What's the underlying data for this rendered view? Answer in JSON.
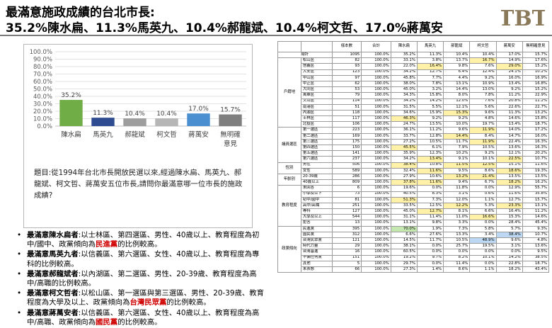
{
  "header": {
    "title_line1": "最滿意施政成績的台北市長:",
    "title_line2": "35.2%陳水扁、11.3%馬英九、10.4%郝龍斌、10.4%柯文哲、17.0%蔣萬安",
    "logo_text": "TBT"
  },
  "chart_data": {
    "type": "bar",
    "categories": [
      "陳水扁",
      "馬英九",
      "郝龍斌",
      "柯文哲",
      "蔣萬安",
      "無明確意見"
    ],
    "values": [
      35.2,
      11.3,
      10.4,
      10.4,
      17.0,
      15.7
    ],
    "value_labels": [
      "35.2%",
      "11.3%",
      "10.4%",
      "10.4%",
      "17.0%",
      "15.7%"
    ],
    "colors": [
      "#70ad47",
      "#2e4c8f",
      "#9e9e9e",
      "#b6b6b6",
      "#4a8fd0",
      "#7f7f7f"
    ],
    "y_ticks": [
      "0.0%",
      "10.0%",
      "20.0%",
      "30.0%",
      "40.0%",
      "50.0%",
      "60.0%",
      "70.0%",
      "80.0%",
      "90.0%",
      "100.0%"
    ],
    "ylim": [
      0,
      100
    ],
    "grid": true,
    "title": "",
    "xlabel": "",
    "ylabel": ""
  },
  "question": "題目:從1994年台北市長開放民選以來,經過陳水扁、馬英九、郝龍斌、柯文哲、蔣萬安五位市長,請問你最滿意哪一位市長的施政成績?",
  "bullets": [
    {
      "lead": "最滿意陳水扁者",
      "text": ":以士林區、第四選區、男性、40歲以上、教育程度為初中/國中、政黨傾向為",
      "hl": "民進黨",
      "tail": "的比例較高。"
    },
    {
      "lead": "最滿意馬英九者",
      "text": ":以信義區、第六選區、女性、40歲以上、教育程度為專科的比例較高。",
      "hl": "",
      "tail": ""
    },
    {
      "lead": "最滿意郝龍斌者",
      "text": ":以內湖區、第二選區、男性、20-39歲、教育程度為高中/高職的比例較高。",
      "hl": "",
      "tail": ""
    },
    {
      "lead": "最滿意柯文哲者",
      "text": ":以松山區、第一選區與第三選區、男性、20-39歲、教育程度為大學及以上、政黨傾向為",
      "hl": "台灣民眾黨",
      "tail": "的比例較高。"
    },
    {
      "lead": "最滿意蔣萬安者",
      "text": ":以信義區、第六選區、女性、40歲以上、教育程度為高中/高職、政黨傾向為",
      "hl": "國民黨",
      "tail": "的比例較高。"
    }
  ],
  "table": {
    "headers": [
      "",
      "",
      "樣本數",
      "合計",
      "陳水扁",
      "馬英九",
      "郝龍斌",
      "柯文哲",
      "蔣萬安",
      "無明確意見"
    ],
    "groups": [
      {
        "name": "總計",
        "rows": [
          {
            "label": "",
            "cells": [
              "1095",
              "100.0%",
              "35.2%",
              "11.3%",
              "10.4%",
              "10.4%",
              "17.0%",
              "15.7%"
            ],
            "hl": []
          }
        ]
      },
      {
        "name": "戶籍地",
        "rows": [
          {
            "label": "松山區",
            "cells": [
              "82",
              "100.0%",
              "33.1%",
              "3.8%",
              "13.7%",
              "16.7%",
              "14.9%",
              "17.6%"
            ],
            "hl": [
              [
                5,
                "y"
              ]
            ]
          },
          {
            "label": "信義區",
            "cells": [
              "93",
              "100.0%",
              "22.0%",
              "16.4%",
              "9.8%",
              "7.6%",
              "29.0%",
              "15.2%"
            ],
            "hl": [
              [
                3,
                "y"
              ],
              [
                6,
                "y"
              ]
            ]
          },
          {
            "label": "大安區",
            "cells": [
              "123",
              "100.0%",
              "34.2%",
              "12.7%",
              "6.4%",
              "12.4%",
              "24.1%",
              "10.2%"
            ],
            "hl": []
          },
          {
            "label": "中山區",
            "cells": [
              "97",
              "100.0%",
              "45.8%",
              "7.7%",
              "4.4%",
              "9.2%",
              "16.0%",
              "16.9%"
            ],
            "hl": []
          },
          {
            "label": "中正區",
            "cells": [
              "62",
              "100.0%",
              "38.0%",
              "7.8%",
              "13.1%",
              "10.9%",
              "13.4%",
              "16.8%"
            ],
            "hl": []
          },
          {
            "label": "大同區",
            "cells": [
              "53",
              "100.0%",
              "45.0%",
              "3.2%",
              "14.4%",
              "13.0%",
              "9.2%",
              "15.2%"
            ],
            "hl": []
          },
          {
            "label": "萬華區",
            "cells": [
              "79",
              "100.0%",
              "34.3%",
              "15.8%",
              "8.0%",
              "7.8%",
              "11.2%",
              "22.9%"
            ],
            "hl": []
          },
          {
            "label": "文山區",
            "cells": [
              "114",
              "100.0%",
              "34.2%",
              "14.2%",
              "12.0%",
              "7.6%",
              "20.8%",
              "11.2%"
            ],
            "hl": []
          },
          {
            "label": "南港區",
            "cells": [
              "51",
              "100.0%",
              "31.5%",
              "5.5%",
              "12.1%",
              "5.6%",
              "22.6%",
              "22.7%"
            ],
            "hl": []
          },
          {
            "label": "內湖區",
            "cells": [
              "118",
              "100.0%",
              "34.6%",
              "15.9%",
              "15.3%",
              "9.6%",
              "11.3%",
              "13.2%"
            ],
            "hl": [
              [
                4,
                "y"
              ]
            ]
          },
          {
            "label": "士林區",
            "cells": [
              "117",
              "100.0%",
              "46.3%",
              "9.2%",
              "9.2%",
              "4.8%",
              "14.6%",
              "15.8%"
            ],
            "hl": [
              [
                2,
                "y"
              ]
            ]
          },
          {
            "label": "北投區",
            "cells": [
              "106",
              "100.0%",
              "24.7%",
              "13.5%",
              "10.0%",
              "19.7%",
              "13.4%",
              "18.7%"
            ],
            "hl": []
          }
        ]
      },
      {
        "name": "議員選區",
        "rows": [
          {
            "label": "第一選區",
            "cells": [
              "223",
              "100.0%",
              "36.1%",
              "11.2%",
              "9.6%",
              "11.9%",
              "14.0%",
              "17.2%"
            ],
            "hl": [
              [
                5,
                "y"
              ]
            ]
          },
          {
            "label": "第二選區",
            "cells": [
              "169",
              "100.0%",
              "33.7%",
              "12.8%",
              "14.4%",
              "8.4%",
              "14.7%",
              "16.0%"
            ],
            "hl": [
              [
                4,
                "y"
              ]
            ]
          },
          {
            "label": "第三選區",
            "cells": [
              "175",
              "100.0%",
              "27.2%",
              "10.5%",
              "11.7%",
              "11.9%",
              "22.4%",
              "16.3%"
            ],
            "hl": [
              [
                5,
                "y"
              ]
            ]
          },
          {
            "label": "第四選區",
            "cells": [
              "150",
              "100.0%",
              "45.5%",
              "6.1%",
              "7.9%",
              "10.5%",
              "13.6%",
              "16.3%"
            ],
            "hl": [
              [
                2,
                "y"
              ]
            ]
          },
          {
            "label": "第五選區",
            "cells": [
              "141",
              "100.0%",
              "35.9%",
              "12.3%",
              "10.2%",
              "9.2%",
              "12.1%",
              "20.2%"
            ],
            "hl": []
          },
          {
            "label": "第六選區",
            "cells": [
              "237",
              "100.0%",
              "34.2%",
              "13.4%",
              "9.1%",
              "10.1%",
              "22.5%",
              "10.7%"
            ],
            "hl": [
              [
                3,
                "y"
              ],
              [
                6,
                "y"
              ]
            ]
          }
        ]
      },
      {
        "name": "性別",
        "rows": [
          {
            "label": "男性",
            "cells": [
              "506",
              "100.0%",
              "38.4%",
              "10.8%",
              "11.5%",
              "12.5%",
              "15.1%",
              "11.6%"
            ],
            "hl": [
              [
                2,
                "y"
              ],
              [
                4,
                "y"
              ],
              [
                5,
                "y"
              ]
            ]
          },
          {
            "label": "女性",
            "cells": [
              "589",
              "100.0%",
              "32.4%",
              "11.6%",
              "9.5%",
              "8.6%",
              "18.6%",
              "19.3%"
            ],
            "hl": [
              [
                3,
                "y"
              ],
              [
                6,
                "y"
              ]
            ]
          }
        ]
      },
      {
        "name": "年齡別",
        "rows": [
          {
            "label": "20-39歲",
            "cells": [
              "286",
              "100.0%",
              "27.9%",
              "10.6%",
              "13.2%",
              "21.4%",
              "13.5%",
              "13.5%"
            ],
            "hl": [
              [
                4,
                "y"
              ],
              [
                5,
                "y"
              ]
            ]
          },
          {
            "label": "40歲以上",
            "cells": [
              "809",
              "100.0%",
              "37.8%",
              "11.6%",
              "9.4%",
              "6.7%",
              "18.2%",
              "16.2%"
            ],
            "hl": [
              [
                2,
                "y"
              ],
              [
                3,
                "y"
              ],
              [
                6,
                "y"
              ]
            ]
          }
        ]
      },
      {
        "name": "教育程度",
        "rows": [
          {
            "label": "未回答",
            "cells": [
              "6",
              "100.0%",
              "19.6%",
              "0.0%",
              "11.8%",
              "0.0%",
              "12.9%",
              "55.7%"
            ],
            "hl": []
          },
          {
            "label": "小學及以下",
            "cells": [
              "73",
              "100.0%",
              "40.5%",
              "8.3%",
              "3.1%",
              "0.6%",
              "11.6%",
              "35.8%"
            ],
            "hl": []
          },
          {
            "label": "初中/國中",
            "cells": [
              "81",
              "100.0%",
              "51.3%",
              "7.3%",
              "12.0%",
              "1.1%",
              "12.7%",
              "15.7%"
            ],
            "hl": [
              [
                2,
                "y"
              ]
            ]
          },
          {
            "label": "高中/高職",
            "cells": [
              "251",
              "100.0%",
              "33.5%",
              "12.5%",
              "12.2%",
              "5.3%",
              "23.3%",
              "13.1%"
            ],
            "hl": [
              [
                4,
                "y"
              ],
              [
                6,
                "y"
              ]
            ]
          },
          {
            "label": "專科",
            "cells": [
              "127",
              "100.0%",
              "45.0%",
              "12.7%",
              "8.1%",
              "6.6%",
              "16.4%",
              "11.2%"
            ],
            "hl": [
              [
                3,
                "y"
              ]
            ]
          },
          {
            "label": "大學及以上",
            "cells": [
              "544",
              "100.0%",
              "31.1%",
              "11.4%",
              "11.0%",
              "16.6%",
              "15.3%",
              "14.6%"
            ],
            "hl": [
              [
                5,
                "y"
              ]
            ]
          },
          {
            "label": "拒答",
            "cells": [
              "13",
              "100.0%",
              "13.1%",
              "9.8%",
              "3.3%",
              "0.0%",
              "28.4%",
              "45.4%"
            ],
            "hl": []
          }
        ]
      },
      {
        "name": "政黨傾向",
        "rows": [
          {
            "label": "民進黨",
            "cells": [
              "395",
              "100.0%",
              "70.0%",
              "1.9%",
              "7.3%",
              "5.8%",
              "5.7%",
              "9.3%"
            ],
            "hl": [
              [
                2,
                "g"
              ]
            ]
          },
          {
            "label": "國民黨",
            "cells": [
              "312",
              "100.0%",
              "6.6%",
              "27.6%",
              "13.3%",
              "3.4%",
              "38.4%",
              "10.7%"
            ],
            "hl": [
              [
                6,
                "b"
              ]
            ]
          },
          {
            "label": "台灣民眾黨",
            "cells": [
              "121",
              "100.0%",
              "14.5%",
              "11.7%",
              "10.5%",
              "48.9%",
              "9.6%",
              "4.8%"
            ],
            "hl": [
              [
                5,
                "b"
              ]
            ]
          },
          {
            "label": "時代力量",
            "cells": [
              "29",
              "100.0%",
              "38.1%",
              "0.0%",
              "25.7%",
              "19.5%",
              "3.1%",
              "13.6%"
            ],
            "hl": []
          },
          {
            "label": "台灣基進",
            "cells": [
              "16",
              "100.0%",
              "60.5%",
              "0.0%",
              "0.0%",
              "0.0%",
              "0.0%",
              "9.5%"
            ],
            "hl": []
          },
          {
            "label": "不偏任何黨",
            "cells": [
              "151",
              "100.0%",
              "19.2%",
              "9.7%",
              "8.2%",
              "10.1%",
              "14.2%",
              "38.5%"
            ],
            "hl": []
          },
          {
            "label": "其他",
            "cells": [
              "5",
              "100.0%",
              "29.7%",
              "0.0%",
              "11.4%",
              "0.0%",
              "22.8%",
              "18.7%"
            ],
            "hl": []
          },
          {
            "label": "未表態",
            "cells": [
              "66",
              "100.0%",
              "27.3%",
              "1.4%",
              "8.6%",
              "1.1%",
              "18.2%",
              "43.4%"
            ],
            "hl": []
          }
        ]
      }
    ]
  }
}
